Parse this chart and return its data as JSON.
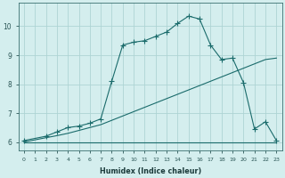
{
  "xlabel": "Humidex (Indice chaleur)",
  "background_color": "#d4eeee",
  "grid_color": "#aed4d4",
  "line_color": "#1a6b6b",
  "line_flat_x": [
    0,
    1,
    2,
    3,
    4,
    5,
    6,
    7,
    8,
    9,
    10,
    11,
    12,
    13,
    14,
    15,
    16,
    17,
    18,
    19,
    20,
    21,
    22,
    23
  ],
  "line_flat_y": [
    6.0,
    6.0,
    6.0,
    6.0,
    6.0,
    6.0,
    6.0,
    6.0,
    6.0,
    6.0,
    6.0,
    6.0,
    6.0,
    6.0,
    6.0,
    6.0,
    6.0,
    6.0,
    6.0,
    6.0,
    6.0,
    6.0,
    6.0,
    6.0
  ],
  "line_diag_x": [
    0,
    2,
    3,
    4,
    5,
    6,
    7,
    8,
    9,
    10,
    11,
    12,
    13,
    14,
    15,
    16,
    17,
    18,
    19,
    20,
    21,
    22,
    23
  ],
  "line_diag_y": [
    6.0,
    6.15,
    6.22,
    6.3,
    6.4,
    6.5,
    6.6,
    6.75,
    6.9,
    7.05,
    7.2,
    7.35,
    7.5,
    7.65,
    7.8,
    7.95,
    8.1,
    8.25,
    8.4,
    8.55,
    8.7,
    8.85,
    8.9
  ],
  "line_main_x": [
    0,
    2,
    3,
    4,
    5,
    6,
    7,
    8,
    9,
    10,
    11,
    12,
    13,
    14,
    15,
    16,
    17,
    18,
    19,
    20,
    21,
    22,
    23
  ],
  "line_main_y": [
    6.05,
    6.2,
    6.35,
    6.5,
    6.55,
    6.65,
    6.8,
    8.1,
    9.35,
    9.45,
    9.5,
    9.65,
    9.8,
    10.1,
    10.35,
    10.25,
    9.35,
    8.85,
    8.9,
    8.05,
    6.45,
    6.7,
    6.05
  ],
  "xlim": [
    -0.5,
    23.5
  ],
  "ylim": [
    5.7,
    10.8
  ],
  "yticks": [
    6,
    7,
    8,
    9,
    10
  ],
  "xticks": [
    0,
    1,
    2,
    3,
    4,
    5,
    6,
    7,
    8,
    9,
    10,
    11,
    12,
    13,
    14,
    15,
    16,
    17,
    18,
    19,
    20,
    21,
    22,
    23
  ]
}
